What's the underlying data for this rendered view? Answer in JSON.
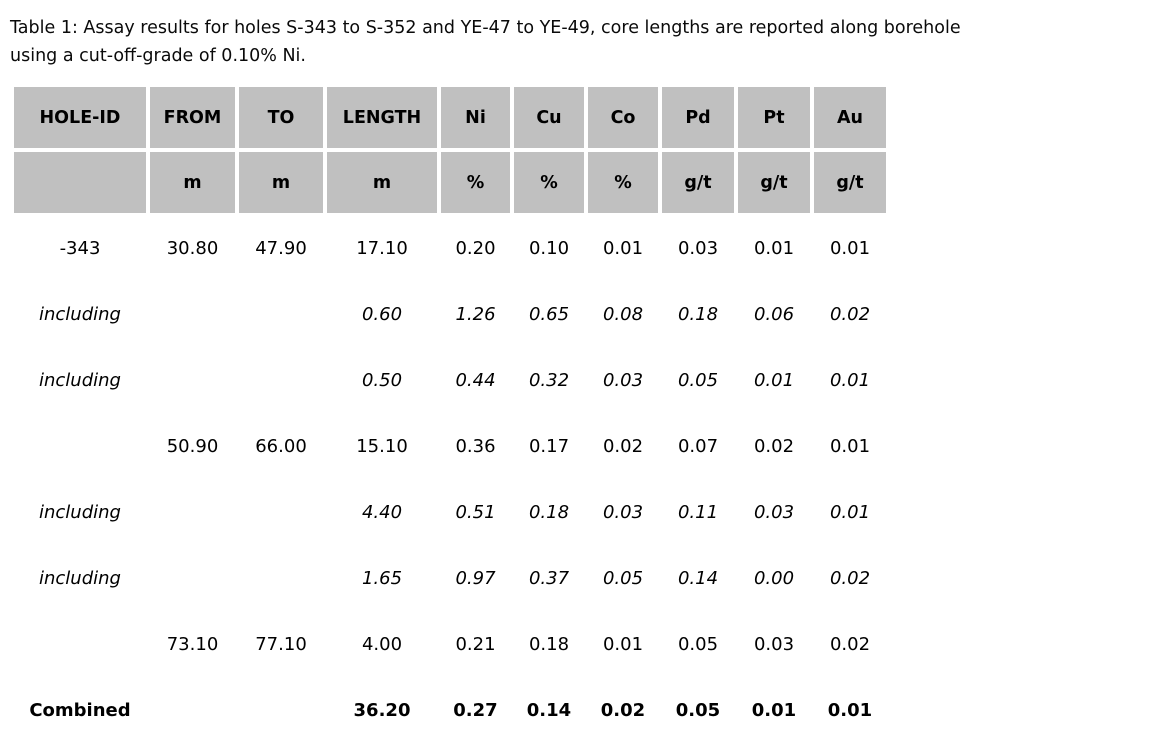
{
  "caption": {
    "line1": "Table 1: Assay results for holes S-343 to S-352 and YE-47 to YE-49, core lengths are reported along borehole",
    "line2": "using a cut-off-grade of 0.10% Ni."
  },
  "table": {
    "columns": [
      {
        "label": "HOLE-ID",
        "unit": ""
      },
      {
        "label": "FROM",
        "unit": "m"
      },
      {
        "label": "TO",
        "unit": "m"
      },
      {
        "label": "LENGTH",
        "unit": "m"
      },
      {
        "label": "Ni",
        "unit": "%"
      },
      {
        "label": "Cu",
        "unit": "%"
      },
      {
        "label": "Co",
        "unit": "%"
      },
      {
        "label": "Pd",
        "unit": "g/t"
      },
      {
        "label": "Pt",
        "unit": "g/t"
      },
      {
        "label": "Au",
        "unit": "g/t"
      }
    ],
    "rows": [
      {
        "style": "normal",
        "cells": [
          "-343",
          "30.80",
          "47.90",
          "17.10",
          "0.20",
          "0.10",
          "0.01",
          "0.03",
          "0.01",
          "0.01"
        ]
      },
      {
        "style": "italic",
        "cells": [
          "including",
          "",
          "",
          "0.60",
          "1.26",
          "0.65",
          "0.08",
          "0.18",
          "0.06",
          "0.02"
        ]
      },
      {
        "style": "italic",
        "cells": [
          "including",
          "",
          "",
          "0.50",
          "0.44",
          "0.32",
          "0.03",
          "0.05",
          "0.01",
          "0.01"
        ]
      },
      {
        "style": "normal",
        "cells": [
          "",
          "50.90",
          "66.00",
          "15.10",
          "0.36",
          "0.17",
          "0.02",
          "0.07",
          "0.02",
          "0.01"
        ]
      },
      {
        "style": "italic",
        "cells": [
          "including",
          "",
          "",
          "4.40",
          "0.51",
          "0.18",
          "0.03",
          "0.11",
          "0.03",
          "0.01"
        ]
      },
      {
        "style": "italic",
        "cells": [
          "including",
          "",
          "",
          "1.65",
          "0.97",
          "0.37",
          "0.05",
          "0.14",
          "0.00",
          "0.02"
        ]
      },
      {
        "style": "normal",
        "cells": [
          "",
          "73.10",
          "77.10",
          "4.00",
          "0.21",
          "0.18",
          "0.01",
          "0.05",
          "0.03",
          "0.02"
        ]
      },
      {
        "style": "bold",
        "cells": [
          "Combined",
          "",
          "",
          "36.20",
          "0.27",
          "0.14",
          "0.02",
          "0.05",
          "0.01",
          "0.01"
        ]
      }
    ]
  },
  "colors": {
    "header_bg": "#c0c0c0",
    "page_bg": "#ffffff",
    "text": "#000000"
  }
}
